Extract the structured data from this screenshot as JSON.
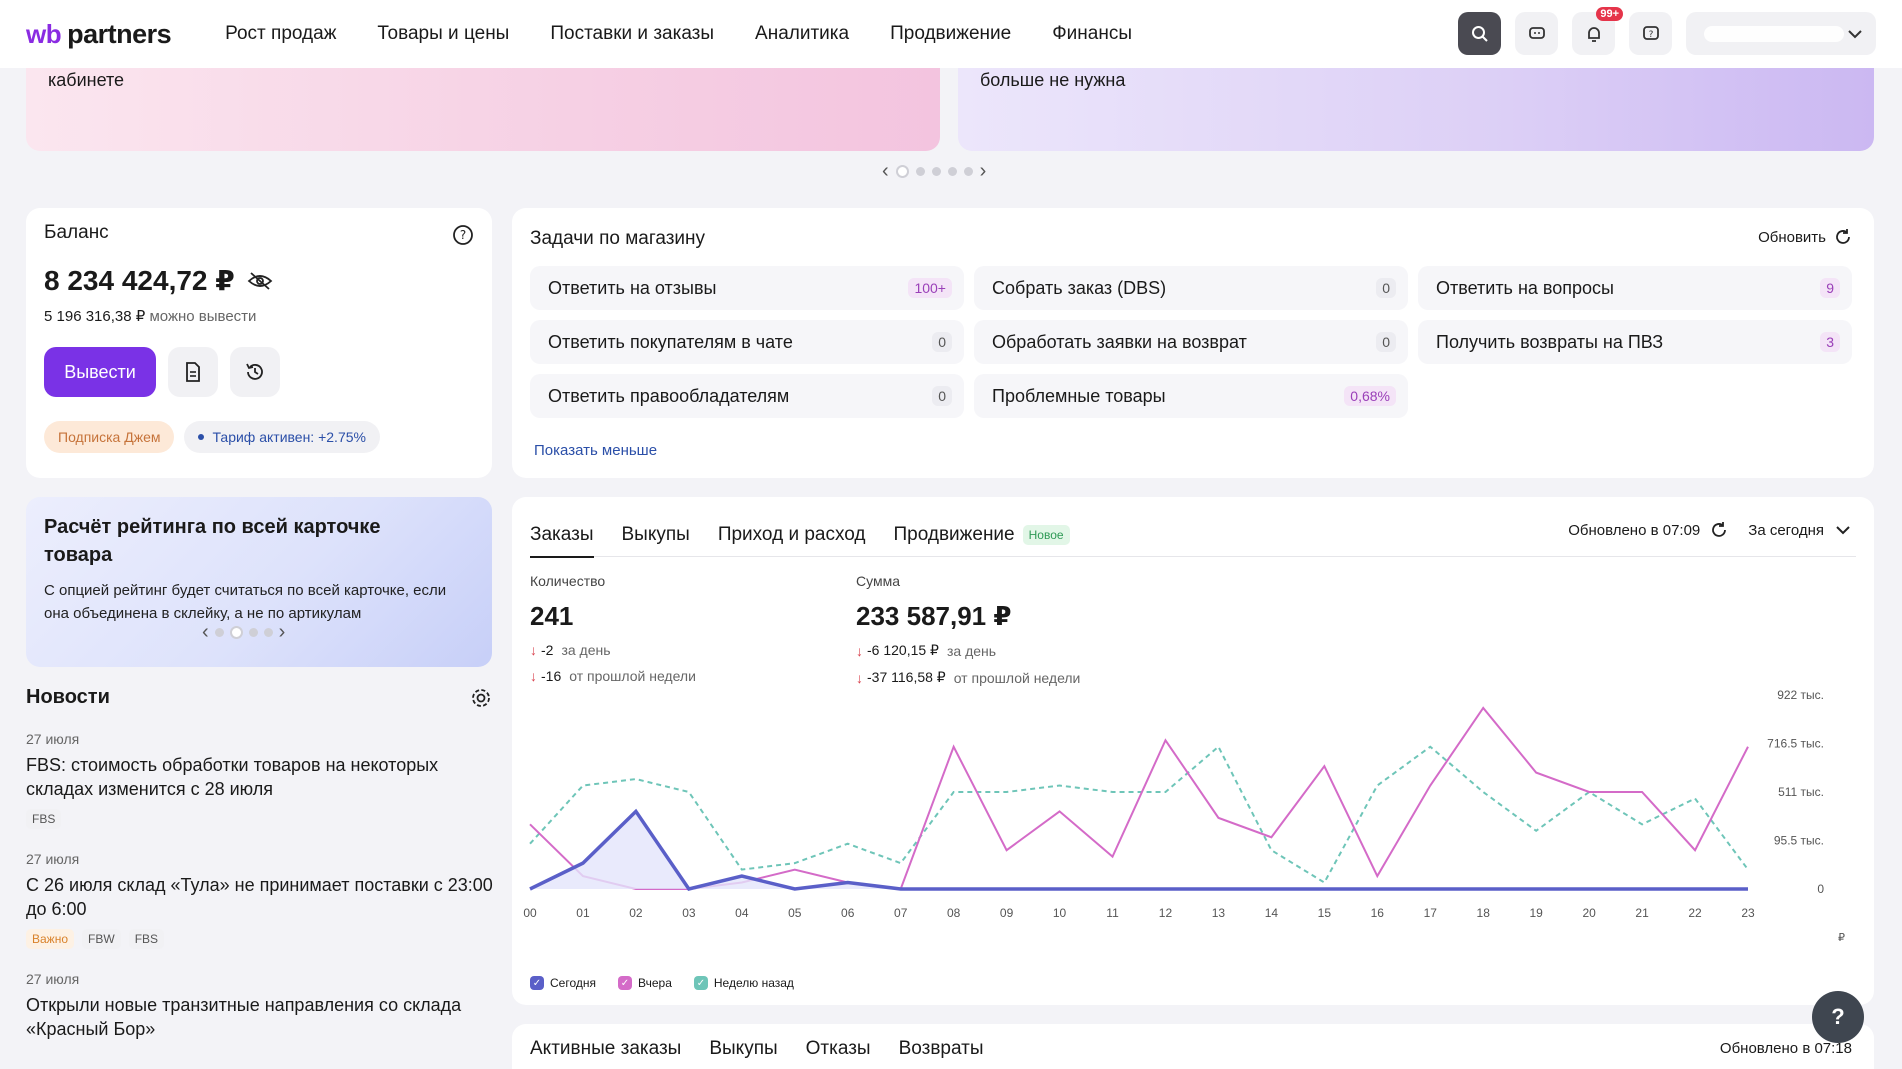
{
  "header": {
    "logo_wb": "wb",
    "logo_rest": "partners",
    "nav": [
      "Рост продаж",
      "Товары и цены",
      "Поставки и заказы",
      "Аналитика",
      "Продвижение",
      "Финансы"
    ],
    "notif_badge": "99+"
  },
  "banners": {
    "left_text": "кабинете",
    "right_text": "больше не нужна"
  },
  "balance": {
    "title": "Баланс",
    "amount": "8 234 424,72 ₽",
    "withdrawable": "5 196 316,38 ₽",
    "withdrawable_label": "можно вывести",
    "withdraw_btn": "Вывести",
    "subscription": "Подписка Джем",
    "tariff": "Тариф активен: +2.75%"
  },
  "tasks": {
    "title": "Задачи по магазину",
    "refresh": "Обновить",
    "items": [
      {
        "label": "Ответить на отзывы",
        "count": "100+",
        "style": "pink"
      },
      {
        "label": "Собрать заказ (DBS)",
        "count": "0",
        "style": "gray"
      },
      {
        "label": "Ответить на вопросы",
        "count": "9",
        "style": "pink"
      },
      {
        "label": "Ответить покупателям в чате",
        "count": "0",
        "style": "gray"
      },
      {
        "label": "Обработать заявки на возврат",
        "count": "0",
        "style": "gray"
      },
      {
        "label": "Получить возвраты на ПВЗ",
        "count": "3",
        "style": "pink"
      },
      {
        "label": "Ответить правообладателям",
        "count": "0",
        "style": "gray"
      },
      {
        "label": "Проблемные товары",
        "count": "0,68%",
        "style": "pink"
      }
    ],
    "show_less": "Показать меньше"
  },
  "promo": {
    "title": "Расчёт рейтинга по всей карточке товара",
    "text": "С опцией рейтинг будет считаться по всей карточке, если она объединена в склейку, а не по артикулам"
  },
  "news": {
    "title": "Новости",
    "items": [
      {
        "date": "27 июля",
        "title": "FBS: стоимость обработки товаров на некоторых складах изменится с 28 июля",
        "tags": [
          "FBS"
        ]
      },
      {
        "date": "27 июля",
        "title": "С 26 июля склад «Тула» не принимает поставки с 23:00 до 6:00",
        "tags": [
          "Важно",
          "FBW",
          "FBS"
        ]
      },
      {
        "date": "27 июля",
        "title": "Открыли новые транзитные направления со склада «Красный Бор»",
        "tags": []
      }
    ]
  },
  "orders": {
    "tabs": [
      "Заказы",
      "Выкупы",
      "Приход и расход",
      "Продвижение"
    ],
    "new_badge": "Новое",
    "updated": "Обновлено в 07:09",
    "period": "За сегодня",
    "qty_label": "Количество",
    "qty_value": "241",
    "qty_day_delta": "-2",
    "qty_week_delta": "-16",
    "sum_label": "Сумма",
    "sum_value": "233 587,91 ₽",
    "sum_day_delta": "-6 120,15 ₽",
    "sum_week_delta": "-37 116,58 ₽",
    "per_day": "за день",
    "per_week": "от прошлой недели",
    "currency_mark": "₽"
  },
  "chart_data": {
    "type": "line",
    "x": [
      "00",
      "01",
      "02",
      "03",
      "04",
      "05",
      "06",
      "07",
      "08",
      "09",
      "10",
      "11",
      "12",
      "13",
      "14",
      "15",
      "16",
      "17",
      "18",
      "19",
      "20",
      "21",
      "22",
      "23"
    ],
    "y_ticks": [
      "922 тыс.",
      "716.5 тыс.",
      "511 тыс.",
      "95.5 тыс.",
      "0"
    ],
    "series": [
      {
        "name": "Сегодня",
        "color": "#5a5fc8",
        "values": [
          0,
          40,
          120,
          0,
          20,
          0,
          10,
          0,
          0,
          0,
          0,
          0,
          0,
          0,
          0,
          0,
          0,
          0,
          0,
          0,
          0,
          0,
          0,
          0
        ]
      },
      {
        "name": "Вчера",
        "color": "#d46bc8",
        "values": [
          100,
          20,
          0,
          0,
          10,
          30,
          10,
          0,
          220,
          60,
          120,
          50,
          230,
          110,
          80,
          190,
          20,
          160,
          280,
          180,
          150,
          150,
          60,
          220
        ]
      },
      {
        "name": "Неделю назад",
        "color": "#6ec5b8",
        "values": [
          70,
          160,
          170,
          150,
          30,
          40,
          70,
          40,
          150,
          150,
          160,
          150,
          150,
          220,
          60,
          10,
          160,
          220,
          150,
          90,
          150,
          100,
          140,
          30
        ]
      }
    ],
    "legend": [
      "Сегодня",
      "Вчера",
      "Неделю назад"
    ]
  },
  "bottom": {
    "tabs": [
      "Активные заказы",
      "Выкупы",
      "Отказы",
      "Возвраты"
    ],
    "updated": "Обновлено в 07:18"
  },
  "help_fab": "?"
}
